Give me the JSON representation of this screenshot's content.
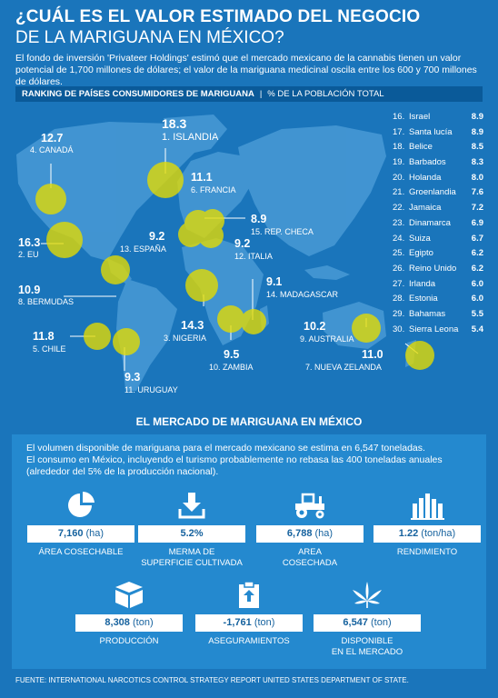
{
  "header": {
    "title_line1": "¿CUÁL ES EL VALOR ESTIMADO DEL NEGOCIO",
    "title_line2": "DE LA MARIGUANA EN MÉXICO?",
    "intro": "El fondo de inversión 'Privateer Holdings' estimó que el mercado mexicano de la cannabis tienen un valor potencial de 1,700 millones de dólares; el valor de la mariguana medicinal oscila entre los 600 y 700 millones de dólares."
  },
  "ranking": {
    "title": "RANKING DE PAÍSES CONSUMIDORES DE MARIGUANA",
    "separator": "|",
    "subtitle": "% DE LA POBLACIÓN TOTAL"
  },
  "map_countries": [
    {
      "rank": "1.",
      "name": "ISLANDIA",
      "value": "18.3"
    },
    {
      "rank": "2.",
      "name": "EU",
      "value": "16.3"
    },
    {
      "rank": "3.",
      "name": "NIGERIA",
      "value": "14.3"
    },
    {
      "rank": "4.",
      "name": "CANADÁ",
      "value": "12.7"
    },
    {
      "rank": "5.",
      "name": "CHILE",
      "value": "11.8"
    },
    {
      "rank": "6.",
      "name": "FRANCIA",
      "value": "11.1"
    },
    {
      "rank": "7.",
      "name": "NUEVA ZELANDA",
      "value": "11.0"
    },
    {
      "rank": "8.",
      "name": "BERMUDAS",
      "value": "10.9"
    },
    {
      "rank": "9.",
      "name": "AUSTRALIA",
      "value": "10.2"
    },
    {
      "rank": "10.",
      "name": "ZAMBIA",
      "value": "9.5"
    },
    {
      "rank": "11.",
      "name": "URUGUAY",
      "value": "9.3"
    },
    {
      "rank": "12.",
      "name": "ITALIA",
      "value": "9.2"
    },
    {
      "rank": "13.",
      "name": "ESPAÑA",
      "value": "9.2"
    },
    {
      "rank": "14.",
      "name": "MADAGASCAR",
      "value": "9.1"
    },
    {
      "rank": "15.",
      "name": "REP. CHECA",
      "value": "8.9"
    }
  ],
  "ranking_list": [
    {
      "rank": "16.",
      "name": "Israel",
      "value": "8.9"
    },
    {
      "rank": "17.",
      "name": "Santa lucía",
      "value": "8.9"
    },
    {
      "rank": "18.",
      "name": "Belice",
      "value": "8.5"
    },
    {
      "rank": "19.",
      "name": "Barbados",
      "value": "8.3"
    },
    {
      "rank": "20.",
      "name": "Holanda",
      "value": "8.0"
    },
    {
      "rank": "21.",
      "name": "Groenlandia",
      "value": "7.6"
    },
    {
      "rank": "22.",
      "name": "Jamaica",
      "value": "7.2"
    },
    {
      "rank": "23.",
      "name": "Dinamarca",
      "value": "6.9"
    },
    {
      "rank": "24.",
      "name": "Suiza",
      "value": "6.7"
    },
    {
      "rank": "25.",
      "name": "Egipto",
      "value": "6.2"
    },
    {
      "rank": "26.",
      "name": "Reino Unido",
      "value": "6.2"
    },
    {
      "rank": "27.",
      "name": "Irlanda",
      "value": "6.0"
    },
    {
      "rank": "28.",
      "name": "Estonia",
      "value": "6.0"
    },
    {
      "rank": "29.",
      "name": "Bahamas",
      "value": "5.5"
    },
    {
      "rank": "30.",
      "name": "Sierra Leona",
      "value": "5.4"
    }
  ],
  "market": {
    "title": "EL MERCADO DE MARIGUANA EN MÉXICO",
    "text_line1": "El volumen disponible de mariguana para el mercado mexicano se estima en 6,547 toneladas.",
    "text_line2": "El consumo en México, incluyendo el turismo probablemente no rebasa las 400 toneladas anuales",
    "text_line3": "(alrededor del 5% de la producción nacional).",
    "stats": [
      {
        "icon": "pie-chart-icon",
        "value": "7,160",
        "unit": "(ha)",
        "label1": "ÁREA COSECHABLE",
        "label2": ""
      },
      {
        "icon": "download-icon",
        "value": "5.2%",
        "unit": "",
        "label1": "MERMA DE",
        "label2": "SUPERFICIE CULTIVADA"
      },
      {
        "icon": "tractor-icon",
        "value": "6,788",
        "unit": "(ha)",
        "label1": "AREA",
        "label2": "COSECHADA"
      },
      {
        "icon": "bar-chart-icon",
        "value": "1.22",
        "unit": "(ton/ha)",
        "label1": "RENDIMIENTO",
        "label2": ""
      },
      {
        "icon": "box-icon",
        "value": "8,308",
        "unit": "(ton)",
        "label1": "PRODUCCIÓN",
        "label2": ""
      },
      {
        "icon": "clipboard-icon",
        "value": "-1,761",
        "unit": "(ton)",
        "label1": "ASEGURAMIENTOS",
        "label2": ""
      },
      {
        "icon": "cannabis-leaf-icon",
        "value": "6,547",
        "unit": "(ton)",
        "label1": "DISPONIBLE",
        "label2": "EN EL MERCADO"
      }
    ]
  },
  "footer": {
    "source": "FUENTE: INTERNATIONAL NARCOTICS CONTROL STRATEGY REPORT UNITED STATES DEPARTMENT OF STATE."
  },
  "colors": {
    "background": "#1a75bb",
    "map_land": "#4f9fd9",
    "bubble": "#e6dc00",
    "panel": "#2489cf",
    "value_text": "#16629e"
  }
}
